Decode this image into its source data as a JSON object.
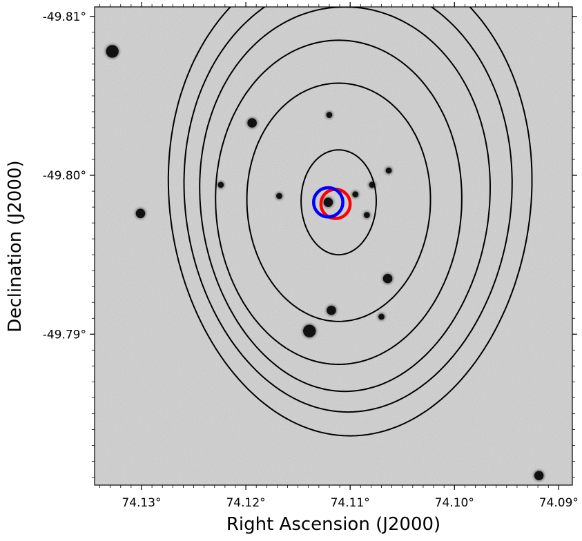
{
  "chart_data": {
    "type": "contour",
    "xlabel": "Right Ascension (J2000)",
    "ylabel": "Declination (J2000)",
    "xlim": [
      74.1345,
      74.0887
    ],
    "ylim": [
      -49.7805,
      -49.8106
    ],
    "x_ticks": [
      {
        "value": 74.13,
        "label": "74.13°"
      },
      {
        "value": 74.12,
        "label": "74.12°"
      },
      {
        "value": 74.11,
        "label": "74.11°"
      },
      {
        "value": 74.1,
        "label": "74.10°"
      },
      {
        "value": 74.09,
        "label": "74.09°"
      }
    ],
    "y_ticks": [
      {
        "value": -49.81,
        "label": "-49.81°"
      },
      {
        "value": -49.8,
        "label": "-49.80°"
      },
      {
        "value": -49.79,
        "label": "-49.79°"
      }
    ],
    "background": "grayscale optical sky image",
    "contours": [
      {
        "level": 1,
        "center": [
          74.1111,
          -49.7983
        ],
        "ra_halfwidth": 0.0036,
        "dec_halfwidth": 0.0033
      },
      {
        "level": 2,
        "center": [
          74.1111,
          -49.7983
        ],
        "ra_halfwidth": 0.0088,
        "dec_halfwidth": 0.0075
      },
      {
        "level": 3,
        "center": [
          74.1111,
          -49.7983
        ],
        "ra_halfwidth": 0.0118,
        "dec_halfwidth": 0.0102
      },
      {
        "level": 4,
        "center": [
          74.1105,
          -49.7985
        ],
        "ra_halfwidth": 0.0139,
        "dec_halfwidth": 0.0121
      },
      {
        "level": 5,
        "center": [
          74.1102,
          -49.7987
        ],
        "ra_halfwidth": 0.0157,
        "dec_halfwidth": 0.0136
      },
      {
        "level": 6,
        "center": [
          74.11,
          -49.7988
        ],
        "ra_halfwidth": 0.0174,
        "dec_halfwidth": 0.0152
      }
    ],
    "markers": [
      {
        "color": "#ff0000",
        "ra": 74.1114,
        "dec": -49.7982,
        "radius_deg": 0.0014
      },
      {
        "color": "#0000ff",
        "ra": 74.1121,
        "dec": -49.7983,
        "radius_deg": 0.0014
      }
    ],
    "stars": [
      {
        "ra": 74.1328,
        "dec": -49.8078,
        "size": 3
      },
      {
        "ra": 74.1301,
        "dec": -49.7976,
        "size": 2
      },
      {
        "ra": 74.1194,
        "dec": -49.8033,
        "size": 2
      },
      {
        "ra": 74.112,
        "dec": -49.8038,
        "size": 1
      },
      {
        "ra": 74.1224,
        "dec": -49.7994,
        "size": 1
      },
      {
        "ra": 74.1121,
        "dec": -49.7983,
        "size": 2
      },
      {
        "ra": 74.1079,
        "dec": -49.7994,
        "size": 1
      },
      {
        "ra": 74.1095,
        "dec": -49.7988,
        "size": 1
      },
      {
        "ra": 74.1064,
        "dec": -49.7935,
        "size": 2
      },
      {
        "ra": 74.1118,
        "dec": -49.7915,
        "size": 2
      },
      {
        "ra": 74.1139,
        "dec": -49.7902,
        "size": 3
      },
      {
        "ra": 74.107,
        "dec": -49.7911,
        "size": 1
      },
      {
        "ra": 74.1168,
        "dec": -49.7987,
        "size": 1
      },
      {
        "ra": 74.1063,
        "dec": -49.8003,
        "size": 1
      },
      {
        "ra": 74.0919,
        "dec": -49.7811,
        "size": 2
      },
      {
        "ra": 74.1084,
        "dec": -49.7975,
        "size": 1
      }
    ],
    "grid": false,
    "colors": {
      "contour": "#000000",
      "red_marker": "#ff0000",
      "blue_marker": "#0000ff"
    }
  }
}
